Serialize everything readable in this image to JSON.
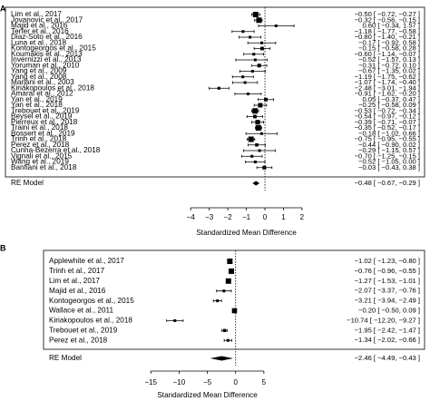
{
  "chart_data": [
    {
      "type": "forest",
      "panel_label": "A",
      "xlabel": "Standardized Mean Difference",
      "xlim": [
        -4.5,
        2.2
      ],
      "xticks": [
        -4,
        -3,
        -2,
        -1,
        0,
        1,
        2
      ],
      "reference_line": 0,
      "studies": [
        {
          "label": "Lim et al., 2017",
          "est": -0.5,
          "lo": -0.72,
          "hi": -0.27,
          "ci": "−0.50 [ −0.72, −0.27 ]"
        },
        {
          "label": "Jovanovic et al., 2017",
          "est": -0.32,
          "lo": -0.56,
          "hi": -0.15,
          "ci": "−0.32 [ −0.56, −0.15 ]"
        },
        {
          "label": "Majid et al., 2016",
          "est": 0.6,
          "lo": -0.34,
          "hi": 1.57,
          "ci": "0.60 [ −0.34, 1.57 ]"
        },
        {
          "label": "Terfer et al., 2016",
          "est": -1.18,
          "lo": -1.77,
          "hi": -0.58,
          "ci": "−1.18 [ −1.77, −0.58 ]"
        },
        {
          "label": "Diaz-Soto et al., 2016",
          "est": -0.8,
          "lo": -1.4,
          "hi": -0.21,
          "ci": "−0.80 [ −1.40, −0.21 ]"
        },
        {
          "label": "Luna et al., 2018",
          "est": -0.17,
          "lo": -0.92,
          "hi": 0.58,
          "ci": "−0.17 [ −0.92, 0.58 ]"
        },
        {
          "label": "Kontogeorgos et al., 2015",
          "est": -0.15,
          "lo": -0.58,
          "hi": 0.28,
          "ci": "−0.15 [ −0.58, 0.28 ]"
        },
        {
          "label": "Koumakis et al., 2013",
          "est": -0.6,
          "lo": -1.14,
          "hi": -0.07,
          "ci": "−0.60 [ −1.14, −0.07 ]"
        },
        {
          "label": "Invernizzi et al., 2013",
          "est": -0.52,
          "lo": -1.57,
          "hi": 0.13,
          "ci": "−0.52 [ −1.57, 0.13 ]"
        },
        {
          "label": "Yoruman et al., 2010",
          "est": -0.31,
          "lo": -0.72,
          "hi": 0.1,
          "ci": "−0.31 [ −0.72, 0.10 ]"
        },
        {
          "label": "Yang et al., 2009",
          "est": -0.67,
          "lo": -1.35,
          "hi": 0.02,
          "ci": "−0.67 [ −1.35, 0.02 ]"
        },
        {
          "label": "Yang et al., 2008",
          "est": -1.19,
          "lo": -1.75,
          "hi": -0.62,
          "ci": "−1.19 [ −1.75, −0.62 ]"
        },
        {
          "label": "Marjani et al., 2003",
          "est": -1.07,
          "lo": -1.74,
          "hi": -0.4,
          "ci": "−1.07 [ −1.74, −0.40 ]"
        },
        {
          "label": "Kiriakopoulos et al., 2018",
          "est": -2.48,
          "lo": -3.01,
          "hi": -1.94,
          "ci": "−2.48 [ −3.01, −1.94 ]"
        },
        {
          "label": "Amaral et al., 2012",
          "est": -0.91,
          "lo": -1.62,
          "hi": -0.2,
          "ci": "−0.91 [ −1.62, −0.20 ]"
        },
        {
          "label": "Yan et al., 2019",
          "est": 0.05,
          "lo": -0.37,
          "hi": 0.47,
          "ci": "0.05 [ −0.37, 0.47 ]"
        },
        {
          "label": "Yan et al., 2018",
          "est": -0.25,
          "lo": -0.58,
          "hi": 0.09,
          "ci": "−0.25 [ −0.58, 0.09 ]"
        },
        {
          "label": "Trebouet et al., 2019",
          "est": -0.53,
          "lo": -0.72,
          "hi": -0.34,
          "ci": "−0.53 [ −0.72, −0.34 ]"
        },
        {
          "label": "Beysel et al., 2019",
          "est": -0.54,
          "lo": -0.97,
          "hi": -0.12,
          "ci": "−0.54 [ −0.97, −0.12 ]"
        },
        {
          "label": "Pierreux et al., 2018",
          "est": -0.39,
          "lo": -0.71,
          "hi": -0.07,
          "ci": "−0.39 [ −0.71, −0.07 ]"
        },
        {
          "label": "Traini et al., 2018",
          "est": -0.35,
          "lo": -0.52,
          "hi": -0.17,
          "ci": "−0.35 [ −0.52, −0.17 ]"
        },
        {
          "label": "Bossert et al., 2019",
          "est": -0.18,
          "lo": -1.02,
          "hi": 0.66,
          "ci": "−0.18 [ −1.02, 0.66 ]"
        },
        {
          "label": "Trinh et al., 2018",
          "est": -0.75,
          "lo": -0.95,
          "hi": -0.55,
          "ci": "−0.75 [ −0.95, −0.55 ]"
        },
        {
          "label": "Perez et al., 2018",
          "est": -0.44,
          "lo": -0.9,
          "hi": 0.02,
          "ci": "−0.44 [ −0.90, 0.02 ]"
        },
        {
          "label": "Cunha-Bezerra et al., 2018",
          "est": -0.29,
          "lo": -1.15,
          "hi": 0.57,
          "ci": "−0.29 [ −1.15, 0.57 ]"
        },
        {
          "label": "Vignali et al., 2015",
          "est": -0.7,
          "lo": -1.25,
          "hi": -0.15,
          "ci": "−0.70 [ −1.25, −0.15 ]"
        },
        {
          "label": "Wang et al., 2019",
          "est": -0.52,
          "lo": -1.05,
          "hi": 0.0,
          "ci": "−0.52 [ −1.05, 0.00 ]"
        },
        {
          "label": "Banfiani et al., 2018",
          "est": -0.03,
          "lo": -0.43,
          "hi": 0.38,
          "ci": "−0.03 [ −0.43, 0.38 ]"
        }
      ],
      "summary": {
        "label": "RE Model",
        "est": -0.48,
        "lo": -0.67,
        "hi": -0.29,
        "ci": "−0.48 [ −0.67, −0.29 ]"
      }
    },
    {
      "type": "forest",
      "panel_label": "B",
      "xlabel": "Standardized Mean Difference",
      "xlim": [
        -16,
        5.5
      ],
      "xticks": [
        -15,
        -10,
        -5,
        0,
        5
      ],
      "reference_line": 0,
      "studies": [
        {
          "label": "Applewhite et al., 2017",
          "est": -1.02,
          "lo": -1.23,
          "hi": -0.8,
          "ci": "−1.02 [ −1.23, −0.80 ]"
        },
        {
          "label": "Trinh et al., 2017",
          "est": -0.76,
          "lo": -0.96,
          "hi": -0.55,
          "ci": "−0.76 [ −0.96, −0.55 ]"
        },
        {
          "label": "Lim et al., 2017",
          "est": -1.27,
          "lo": -1.53,
          "hi": -1.01,
          "ci": "−1.27 [ −1.53, −1.01 ]"
        },
        {
          "label": "Majid et al., 2016",
          "est": -2.07,
          "lo": -3.37,
          "hi": -0.76,
          "ci": "−2.07 [ −3.37, −0.76 ]"
        },
        {
          "label": "Kontogeorgos et al., 2015",
          "est": -3.21,
          "lo": -3.94,
          "hi": -2.49,
          "ci": "−3.21 [ −3.94, −2.49 ]"
        },
        {
          "label": "Wallace et al., 2011",
          "est": -0.2,
          "lo": -0.5,
          "hi": 0.09,
          "ci": "−0.20 [ −0.50, 0.09 ]"
        },
        {
          "label": "Kiriakopoulos et al., 2018",
          "est": -10.74,
          "lo": -12.2,
          "hi": -9.27,
          "ci": "−10.74 [ −12.20, −9.27 ]"
        },
        {
          "label": "Trebouet et al., 2019",
          "est": -1.95,
          "lo": -2.42,
          "hi": -1.47,
          "ci": "−1.95 [ −2.42, −1.47 ]"
        },
        {
          "label": "Perez et al., 2018",
          "est": -1.34,
          "lo": -2.02,
          "hi": -0.66,
          "ci": "−1.34 [ −2.02, −0.66 ]"
        }
      ],
      "summary": {
        "label": "RE Model",
        "est": -2.46,
        "lo": -4.49,
        "hi": -0.43,
        "ci": "−2.46 [ −4.49, −0.43 ]"
      }
    }
  ]
}
